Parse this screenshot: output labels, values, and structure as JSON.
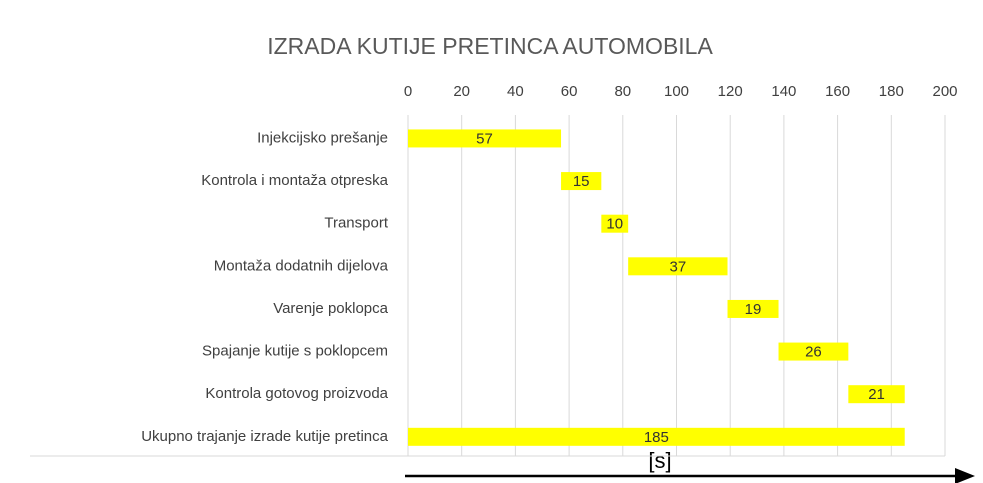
{
  "chart_data": {
    "type": "gantt",
    "title": "IZRADA KUTIJE PRETINCA AUTOMOBILA",
    "categories": [
      "Injekcijsko prešanje",
      "Kontrola i montaža otpreska",
      "Transport",
      "Montaža dodatnih dijelova",
      "Varenje poklopca",
      "Spajanje kutije s poklopcem",
      "Kontrola gotovog proizvoda",
      "Ukupno trajanje izrade kutije pretinca"
    ],
    "starts": [
      0,
      57,
      72,
      82,
      119,
      138,
      164,
      0
    ],
    "values": [
      57,
      15,
      10,
      37,
      19,
      26,
      21,
      185
    ],
    "color": "#ffff00",
    "xlim": [
      0,
      200
    ],
    "xticks": [
      0,
      20,
      40,
      60,
      80,
      100,
      120,
      140,
      160,
      180,
      200
    ],
    "grid": true,
    "annotation": "[s]"
  }
}
